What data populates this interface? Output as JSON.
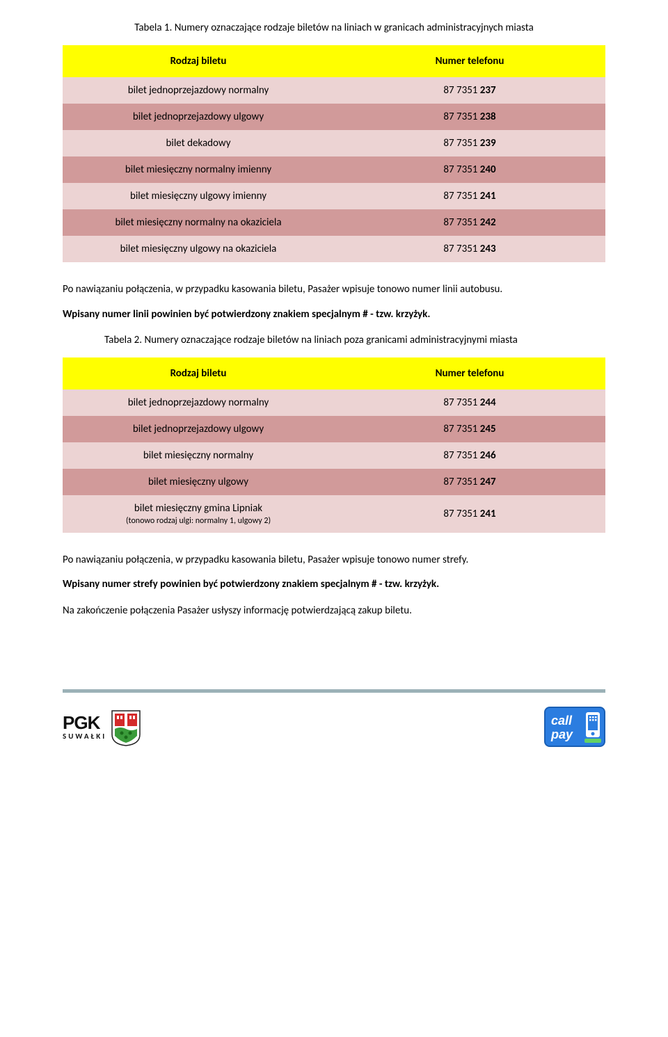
{
  "table1": {
    "caption": "Tabela 1. Numery oznaczające rodzaje biletów na liniach w granicach administracyjnych miasta",
    "header": {
      "col1": "Rodzaj biletu",
      "col2": "Numer telefonu"
    },
    "rows": [
      {
        "type": "bilet jednoprzejazdowy normalny",
        "prefix": "87 7351 ",
        "num": "237",
        "shade": "light"
      },
      {
        "type": "bilet jednoprzejazdowy ulgowy",
        "prefix": "87 7351 ",
        "num": "238",
        "shade": "dark"
      },
      {
        "type": "bilet dekadowy",
        "prefix": "87 7351 ",
        "num": "239",
        "shade": "light"
      },
      {
        "type": "bilet miesięczny normalny imienny",
        "prefix": "87 7351 ",
        "num": "240",
        "shade": "dark"
      },
      {
        "type": "bilet miesięczny ulgowy imienny",
        "prefix": "87 7351 ",
        "num": "241",
        "shade": "light"
      },
      {
        "type": "bilet miesięczny normalny na okaziciela",
        "prefix": "87 7351 ",
        "num": "242",
        "shade": "dark"
      },
      {
        "type": "bilet miesięczny ulgowy na okaziciela",
        "prefix": "87 7351 ",
        "num": "243",
        "shade": "light"
      }
    ]
  },
  "mid1": {
    "para": "Po nawiązaniu połączenia, w przypadku kasowania biletu, Pasażer wpisuje tonowo numer linii autobusu.",
    "bold": "Wpisany numer linii powinien być potwierdzony znakiem specjalnym # - tzw. krzyżyk."
  },
  "table2": {
    "caption": "Tabela 2. Numery oznaczające rodzaje biletów na liniach poza granicami administracyjnymi miasta",
    "header": {
      "col1": "Rodzaj biletu",
      "col2": "Numer telefonu"
    },
    "rows": [
      {
        "type": "bilet jednoprzejazdowy normalny",
        "sub": "",
        "prefix": "87 7351 ",
        "num": "244",
        "shade": "light"
      },
      {
        "type": "bilet jednoprzejazdowy ulgowy",
        "sub": "",
        "prefix": "87 7351 ",
        "num": "245",
        "shade": "dark"
      },
      {
        "type": "bilet miesięczny normalny",
        "sub": "",
        "prefix": "87 7351 ",
        "num": "246",
        "shade": "light"
      },
      {
        "type": "bilet miesięczny ulgowy",
        "sub": "",
        "prefix": "87 7351 ",
        "num": "247",
        "shade": "dark"
      },
      {
        "type": "bilet miesięczny gmina Lipniak",
        "sub": "(tonowo rodzaj ulgi: normalny 1, ulgowy 2)",
        "prefix": "87 7351 ",
        "num": "241",
        "shade": "light"
      }
    ]
  },
  "bottom": {
    "para": "Po nawiązaniu połączenia, w przypadku kasowania biletu, Pasażer wpisuje tonowo numer strefy.",
    "bold1": "Wpisany numer strefy powinien być potwierdzony znakiem specjalnym # - tzw. krzyżyk.",
    "final": "Na zakończenie połączenia Pasażer usłyszy informację potwierdzającą zakup biletu."
  },
  "logos": {
    "pgk": "PGK",
    "pgk_sub": "SUWAŁKI",
    "callpay": "call pay"
  },
  "colors": {
    "header_bg": "#ffff00",
    "row_dark": "#d19a9a",
    "row_light": "#ecd3d3",
    "footer_bar": "#9bb1b7"
  }
}
